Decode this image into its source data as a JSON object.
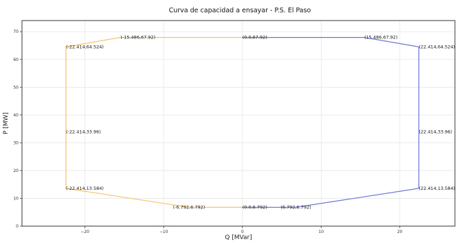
{
  "chart_data": {
    "type": "line",
    "title": "Curva de capacidad a ensayar - P.S. El Paso",
    "xlabel": "Q [MVar]",
    "ylabel": "P [MW]",
    "xlim": [
      -28,
      27
    ],
    "ylim": [
      0,
      74
    ],
    "x_ticks": [
      -20,
      -10,
      0,
      10,
      20
    ],
    "y_ticks": [
      0,
      10,
      20,
      30,
      40,
      50,
      60,
      70
    ],
    "grid": true,
    "legend": "none",
    "series": [
      {
        "color": "#f5c26b",
        "points": [
          {
            "x": 0,
            "y": 67.92
          },
          {
            "x": -15.486,
            "y": 67.92
          },
          {
            "x": -22.414,
            "y": 64.524
          },
          {
            "x": -22.414,
            "y": 33.96
          },
          {
            "x": -22.414,
            "y": 13.584
          },
          {
            "x": -6.792,
            "y": 6.792
          },
          {
            "x": 0,
            "y": 6.792
          }
        ]
      },
      {
        "color": "#6f74d6",
        "points": [
          {
            "x": 0,
            "y": 67.92
          },
          {
            "x": 15.486,
            "y": 67.92
          },
          {
            "x": 22.414,
            "y": 64.524
          },
          {
            "x": 22.414,
            "y": 33.96
          },
          {
            "x": 22.414,
            "y": 13.584
          },
          {
            "x": 6.792,
            "y": 6.792
          },
          {
            "x": 0,
            "y": 6.792
          }
        ]
      }
    ],
    "annotations": [
      {
        "text": "(-15.486,67.92)",
        "x": -15.486,
        "y": 67.92,
        "align": "start"
      },
      {
        "text": "(0.0,67.92)",
        "x": 0,
        "y": 67.92,
        "align": "start"
      },
      {
        "text": "(15.486,67.92)",
        "x": 15.486,
        "y": 67.92,
        "align": "start"
      },
      {
        "text": "(-22.414,64.524)",
        "x": -22.414,
        "y": 64.524,
        "align": "start"
      },
      {
        "text": "(22.414,64.524)",
        "x": 22.414,
        "y": 64.524,
        "align": "start"
      },
      {
        "text": "(-22.414,33.96)",
        "x": -22.414,
        "y": 33.96,
        "align": "start"
      },
      {
        "text": "(22.414,33.96)",
        "x": 22.414,
        "y": 33.96,
        "align": "start"
      },
      {
        "text": "(-22.414,13.584)",
        "x": -22.414,
        "y": 13.584,
        "align": "start"
      },
      {
        "text": "(22.414,13.584)",
        "x": 22.414,
        "y": 13.584,
        "align": "start"
      },
      {
        "text": "(-6.792,6.792)",
        "x": -6.792,
        "y": 6.792,
        "align": "middle"
      },
      {
        "text": "(0.0,6.792)",
        "x": 0,
        "y": 6.792,
        "align": "start"
      },
      {
        "text": "(6.792,6.792)",
        "x": 6.792,
        "y": 6.792,
        "align": "middle"
      }
    ]
  }
}
